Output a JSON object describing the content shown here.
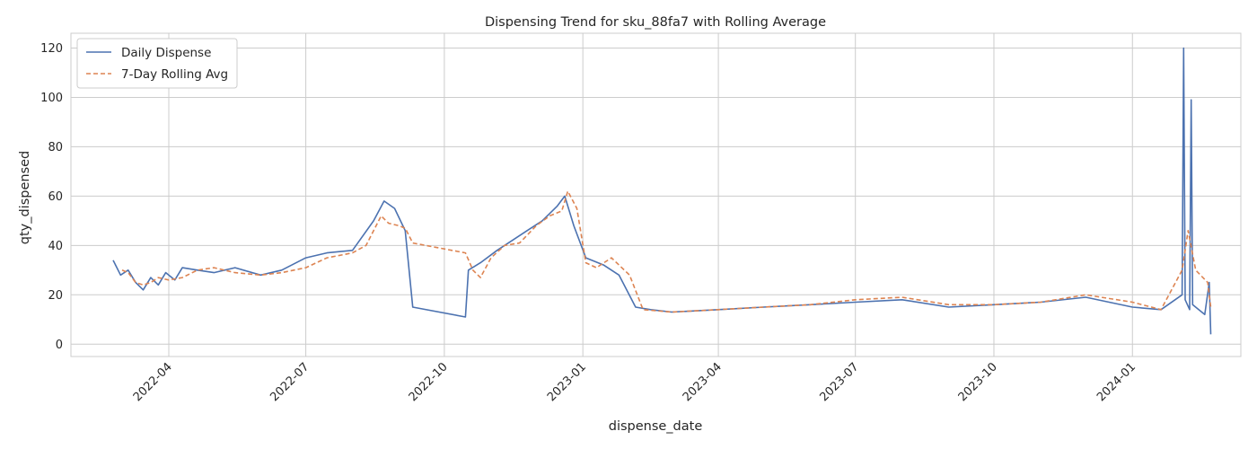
{
  "chart_data": {
    "type": "line",
    "title": "Dispensing Trend for sku_88fa7 with Rolling Average",
    "xlabel": "dispense_date",
    "ylabel": "qty_dispensed",
    "xlim": [
      "2022-01-26",
      "2024-03-13"
    ],
    "ylim": [
      -5,
      126
    ],
    "x_ticks": [
      "2022-04",
      "2022-07",
      "2022-10",
      "2023-01",
      "2023-04",
      "2023-07",
      "2023-10",
      "2024-01"
    ],
    "y_ticks": [
      0,
      20,
      40,
      60,
      80,
      100,
      120
    ],
    "grid": true,
    "legend": "top-left",
    "colors": {
      "daily": "#4c72b0",
      "rolling": "#dd8452",
      "grid": "#cccccc",
      "spine": "#cccccc"
    },
    "series": [
      {
        "name": "Daily Dispense",
        "style": "solid",
        "points": [
          [
            "2022-02-23",
            34
          ],
          [
            "2022-02-28",
            28
          ],
          [
            "2022-03-05",
            30
          ],
          [
            "2022-03-10",
            25
          ],
          [
            "2022-03-15",
            22
          ],
          [
            "2022-03-20",
            27
          ],
          [
            "2022-03-25",
            24
          ],
          [
            "2022-03-30",
            29
          ],
          [
            "2022-04-05",
            26
          ],
          [
            "2022-04-10",
            31
          ],
          [
            "2022-04-20",
            30
          ],
          [
            "2022-05-01",
            29
          ],
          [
            "2022-05-15",
            31
          ],
          [
            "2022-06-01",
            28
          ],
          [
            "2022-06-15",
            30
          ],
          [
            "2022-07-01",
            35
          ],
          [
            "2022-07-15",
            37
          ],
          [
            "2022-08-01",
            38
          ],
          [
            "2022-08-15",
            50
          ],
          [
            "2022-08-22",
            58
          ],
          [
            "2022-08-29",
            55
          ],
          [
            "2022-09-05",
            46
          ],
          [
            "2022-09-10",
            15
          ],
          [
            "2022-10-15",
            11
          ],
          [
            "2022-10-17",
            30
          ],
          [
            "2022-10-25",
            33
          ],
          [
            "2022-11-05",
            38
          ],
          [
            "2022-11-15",
            42
          ],
          [
            "2022-11-25",
            46
          ],
          [
            "2022-12-05",
            50
          ],
          [
            "2022-12-15",
            56
          ],
          [
            "2022-12-20",
            60
          ],
          [
            "2022-12-26",
            48
          ],
          [
            "2023-01-03",
            35
          ],
          [
            "2023-01-15",
            32
          ],
          [
            "2023-01-25",
            28
          ],
          [
            "2023-02-05",
            15
          ],
          [
            "2023-02-15",
            14
          ],
          [
            "2023-03-01",
            13
          ],
          [
            "2023-04-01",
            14
          ],
          [
            "2023-05-01",
            15
          ],
          [
            "2023-06-01",
            16
          ],
          [
            "2023-07-01",
            17
          ],
          [
            "2023-08-01",
            18
          ],
          [
            "2023-09-01",
            15
          ],
          [
            "2023-10-01",
            16
          ],
          [
            "2023-11-01",
            17
          ],
          [
            "2023-12-01",
            19
          ],
          [
            "2024-01-01",
            15
          ],
          [
            "2024-01-20",
            14
          ],
          [
            "2024-02-03",
            20
          ],
          [
            "2024-02-04",
            120
          ],
          [
            "2024-02-05",
            18
          ],
          [
            "2024-02-08",
            14
          ],
          [
            "2024-02-09",
            99
          ],
          [
            "2024-02-10",
            16
          ],
          [
            "2024-02-18",
            12
          ],
          [
            "2024-02-21",
            25
          ],
          [
            "2024-02-22",
            4
          ]
        ]
      },
      {
        "name": "7-Day Rolling Avg",
        "style": "dashed",
        "points": [
          [
            "2022-03-01",
            30
          ],
          [
            "2022-03-05",
            29
          ],
          [
            "2022-03-10",
            25
          ],
          [
            "2022-03-15",
            24
          ],
          [
            "2022-03-20",
            25
          ],
          [
            "2022-03-25",
            27
          ],
          [
            "2022-04-01",
            26
          ],
          [
            "2022-04-10",
            27
          ],
          [
            "2022-04-20",
            30
          ],
          [
            "2022-05-01",
            31
          ],
          [
            "2022-05-15",
            29
          ],
          [
            "2022-06-01",
            28
          ],
          [
            "2022-06-15",
            29
          ],
          [
            "2022-07-01",
            31
          ],
          [
            "2022-07-15",
            35
          ],
          [
            "2022-08-01",
            37
          ],
          [
            "2022-08-10",
            40
          ],
          [
            "2022-08-20",
            52
          ],
          [
            "2022-08-25",
            49
          ],
          [
            "2022-09-01",
            48
          ],
          [
            "2022-09-05",
            47
          ],
          [
            "2022-09-10",
            41
          ],
          [
            "2022-10-15",
            37
          ],
          [
            "2022-10-20",
            30
          ],
          [
            "2022-10-25",
            27
          ],
          [
            "2022-11-01",
            35
          ],
          [
            "2022-11-10",
            40
          ],
          [
            "2022-11-20",
            41
          ],
          [
            "2022-12-01",
            48
          ],
          [
            "2022-12-10",
            52
          ],
          [
            "2022-12-18",
            54
          ],
          [
            "2022-12-22",
            62
          ],
          [
            "2022-12-28",
            55
          ],
          [
            "2023-01-03",
            33
          ],
          [
            "2023-01-10",
            31
          ],
          [
            "2023-01-20",
            35
          ],
          [
            "2023-02-01",
            28
          ],
          [
            "2023-02-10",
            14
          ],
          [
            "2023-03-01",
            13
          ],
          [
            "2023-04-01",
            14
          ],
          [
            "2023-05-01",
            15
          ],
          [
            "2023-06-01",
            16
          ],
          [
            "2023-07-01",
            18
          ],
          [
            "2023-08-01",
            19
          ],
          [
            "2023-09-01",
            16
          ],
          [
            "2023-10-01",
            16
          ],
          [
            "2023-11-01",
            17
          ],
          [
            "2023-12-01",
            20
          ],
          [
            "2024-01-01",
            17
          ],
          [
            "2024-01-20",
            14
          ],
          [
            "2024-02-03",
            30
          ],
          [
            "2024-02-07",
            46
          ],
          [
            "2024-02-12",
            30
          ],
          [
            "2024-02-20",
            25
          ],
          [
            "2024-02-22",
            15
          ]
        ]
      }
    ]
  }
}
